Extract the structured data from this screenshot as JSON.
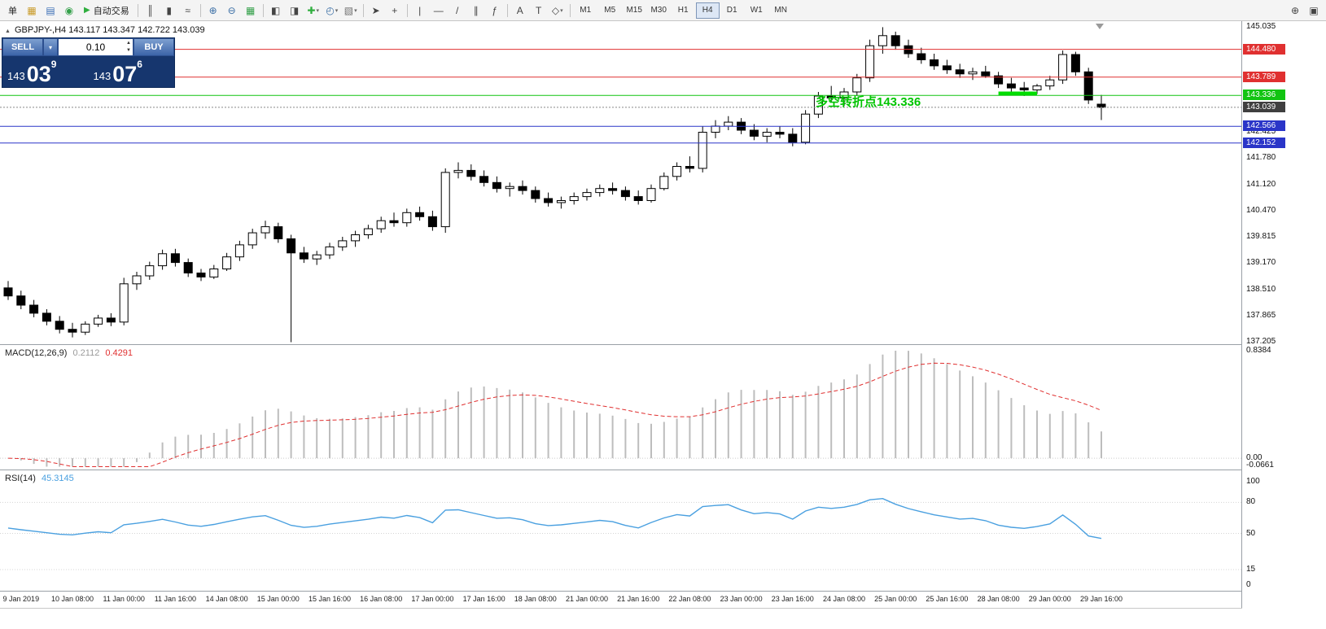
{
  "colors": {
    "red_line": "#e03030",
    "green_line": "#12c412",
    "blue_line": "#2a35c8",
    "price_badge": "#3f3f3f",
    "segment_green": "#00dd00",
    "annotation_green": "#00c400",
    "macd_hist": "#bdbdbd",
    "macd_signal": "#e03030",
    "rsi_line": "#4aa0e0",
    "bull_body": "#ffffff",
    "bear_body": "#000000"
  },
  "toolbar": {
    "dropdown_glyph": "▾",
    "items": [
      {
        "t": "btn",
        "name": "new-order-button",
        "label": "单"
      },
      {
        "t": "icon",
        "name": "market-watch-icon",
        "g": "▦",
        "c": "#c99b2a"
      },
      {
        "t": "icon",
        "name": "data-window-icon",
        "g": "▤",
        "c": "#3c6fb6"
      },
      {
        "t": "icon",
        "name": "navigator-icon",
        "g": "◉",
        "c": "#34a04a"
      },
      {
        "t": "btn",
        "name": "autotrading-button",
        "label": "自动交易",
        "g": "▶",
        "c": "#2fae3e"
      },
      {
        "t": "sep"
      },
      {
        "t": "icon",
        "name": "bar-chart-icon",
        "g": "║"
      },
      {
        "t": "icon",
        "name": "candlestick-chart-icon",
        "g": "▮"
      },
      {
        "t": "icon",
        "name": "line-chart-icon",
        "g": "≈"
      },
      {
        "t": "sep"
      },
      {
        "t": "icon",
        "name": "zoom-in-icon",
        "g": "⊕",
        "c": "#3a6ea5"
      },
      {
        "t": "icon",
        "name": "zoom-out-icon",
        "g": "⊖",
        "c": "#3a6ea5"
      },
      {
        "t": "icon",
        "name": "tile-windows-icon",
        "g": "▦",
        "c": "#34a04a"
      },
      {
        "t": "sep"
      },
      {
        "t": "icon",
        "name": "new-chart-icon",
        "g": "◧"
      },
      {
        "t": "icon",
        "name": "profiles-icon",
        "g": "◨"
      },
      {
        "t": "icon",
        "name": "indicators-dropdown",
        "g": "✚",
        "c": "#2fae3e",
        "dd": true
      },
      {
        "t": "icon",
        "name": "periods-dropdown",
        "g": "◴",
        "c": "#3a6ea5",
        "dd": true
      },
      {
        "t": "icon",
        "name": "templates-dropdown",
        "g": "▧",
        "c": "#707070",
        "dd": true
      },
      {
        "t": "sep"
      },
      {
        "t": "icon",
        "name": "cursor-icon",
        "g": "➤"
      },
      {
        "t": "icon",
        "name": "crosshair-icon",
        "g": "+"
      },
      {
        "t": "sep"
      },
      {
        "t": "icon",
        "name": "vertical-line-icon",
        "g": "|"
      },
      {
        "t": "icon",
        "name": "horizontal-line-icon",
        "g": "—"
      },
      {
        "t": "icon",
        "name": "trendline-icon",
        "g": "/"
      },
      {
        "t": "icon",
        "name": "channel-icon",
        "g": "∥"
      },
      {
        "t": "icon",
        "name": "fibonacci-icon",
        "g": "ƒ"
      },
      {
        "t": "sep"
      },
      {
        "t": "icon",
        "name": "text-icon",
        "g": "A"
      },
      {
        "t": "icon",
        "name": "text-label-icon",
        "g": "T"
      },
      {
        "t": "icon",
        "name": "arrows-icon",
        "g": "◇",
        "dd": true
      },
      {
        "t": "sep"
      },
      {
        "t": "tf",
        "name": "timeframe-m1",
        "label": "M1"
      },
      {
        "t": "tf",
        "name": "timeframe-m5",
        "label": "M5"
      },
      {
        "t": "tf",
        "name": "timeframe-m15",
        "label": "M15"
      },
      {
        "t": "tf",
        "name": "timeframe-m30",
        "label": "M30"
      },
      {
        "t": "tf",
        "name": "timeframe-h1",
        "label": "H1"
      },
      {
        "t": "tf",
        "name": "timeframe-h4",
        "label": "H4",
        "active": true
      },
      {
        "t": "tf",
        "name": "timeframe-d1",
        "label": "D1"
      },
      {
        "t": "tf",
        "name": "timeframe-w1",
        "label": "W1"
      },
      {
        "t": "tf",
        "name": "timeframe-mn",
        "label": "MN"
      },
      {
        "t": "spacer"
      },
      {
        "t": "icon",
        "name": "search-icon",
        "g": "⊕"
      },
      {
        "t": "icon",
        "name": "docking-icon",
        "g": "▣"
      }
    ]
  },
  "chart_header": {
    "marker": "▲",
    "symbol": "GBPJPY-,H4",
    "ohlc": "143.117 143.347 142.722 143.039"
  },
  "trade_panel": {
    "sell_label": "SELL",
    "buy_label": "BUY",
    "dropdown_glyph": "▾",
    "lot_value": "0.10",
    "spin_up": "▲",
    "spin_down": "▼",
    "sell_price": {
      "prefix": "143",
      "big": "03",
      "sup": "9"
    },
    "buy_price": {
      "prefix": "143",
      "big": "07",
      "sup": "6"
    }
  },
  "annotation": {
    "text": "多空转折点143.336"
  },
  "chart_data": {
    "type": "candlestick",
    "symbol": "GBPJPY-",
    "timeframe": "H4",
    "title": "GBPJPY-,H4 143.117 143.347 142.722 143.039",
    "ylim": [
      137.15,
      145.18
    ],
    "y_ticks": [
      "145.035",
      "144.390",
      "143.735",
      "143.080",
      "142.425",
      "141.780",
      "141.120",
      "140.470",
      "139.815",
      "139.170",
      "138.510",
      "137.865",
      "137.205"
    ],
    "x_label_start": 1,
    "x_label_step": 4,
    "x_labels": [
      "9 Jan 2019",
      "10 Jan 08:00",
      "11 Jan 00:00",
      "11 Jan 16:00",
      "14 Jan 08:00",
      "15 Jan 00:00",
      "15 Jan 16:00",
      "16 Jan 08:00",
      "17 Jan 00:00",
      "17 Jan 16:00",
      "18 Jan 08:00",
      "21 Jan 00:00",
      "21 Jan 16:00",
      "22 Jan 08:00",
      "23 Jan 00:00",
      "23 Jan 16:00",
      "24 Jan 08:00",
      "25 Jan 00:00",
      "25 Jan 16:00",
      "28 Jan 08:00",
      "29 Jan 00:00",
      "29 Jan 16:00"
    ],
    "candles": [
      [
        138.55,
        138.72,
        138.25,
        138.35
      ],
      [
        138.35,
        138.48,
        138.02,
        138.12
      ],
      [
        138.12,
        138.25,
        137.82,
        137.92
      ],
      [
        137.92,
        138.02,
        137.62,
        137.72
      ],
      [
        137.72,
        137.85,
        137.42,
        137.52
      ],
      [
        137.52,
        137.68,
        137.32,
        137.45
      ],
      [
        137.45,
        137.72,
        137.38,
        137.65
      ],
      [
        137.65,
        137.88,
        137.58,
        137.8
      ],
      [
        137.8,
        137.92,
        137.6,
        137.7
      ],
      [
        137.7,
        138.8,
        137.62,
        138.65
      ],
      [
        138.65,
        138.95,
        138.5,
        138.85
      ],
      [
        138.85,
        139.2,
        138.75,
        139.1
      ],
      [
        139.1,
        139.5,
        139.0,
        139.4
      ],
      [
        139.4,
        139.52,
        139.08,
        139.18
      ],
      [
        139.18,
        139.28,
        138.82,
        138.92
      ],
      [
        138.92,
        139.02,
        138.72,
        138.82
      ],
      [
        138.82,
        139.12,
        138.77,
        139.02
      ],
      [
        139.02,
        139.42,
        138.97,
        139.32
      ],
      [
        139.32,
        139.72,
        139.22,
        139.62
      ],
      [
        139.62,
        140.02,
        139.52,
        139.92
      ],
      [
        139.92,
        140.22,
        139.77,
        140.07
      ],
      [
        140.07,
        140.17,
        139.67,
        139.77
      ],
      [
        139.77,
        139.87,
        137.2,
        139.42
      ],
      [
        139.42,
        139.57,
        139.17,
        139.27
      ],
      [
        139.27,
        139.47,
        139.12,
        139.37
      ],
      [
        139.37,
        139.67,
        139.27,
        139.57
      ],
      [
        139.57,
        139.82,
        139.47,
        139.72
      ],
      [
        139.72,
        139.97,
        139.57,
        139.87
      ],
      [
        139.87,
        140.12,
        139.77,
        140.02
      ],
      [
        140.02,
        140.32,
        139.92,
        140.22
      ],
      [
        140.22,
        140.42,
        140.07,
        140.17
      ],
      [
        140.17,
        140.52,
        140.07,
        140.42
      ],
      [
        140.42,
        140.57,
        140.22,
        140.32
      ],
      [
        140.32,
        140.47,
        139.97,
        140.07
      ],
      [
        140.07,
        141.52,
        139.92,
        141.42
      ],
      [
        141.42,
        141.67,
        141.27,
        141.47
      ],
      [
        141.47,
        141.62,
        141.22,
        141.32
      ],
      [
        141.32,
        141.47,
        141.07,
        141.17
      ],
      [
        141.17,
        141.32,
        140.92,
        141.02
      ],
      [
        141.02,
        141.17,
        140.82,
        141.07
      ],
      [
        141.07,
        141.22,
        140.87,
        140.97
      ],
      [
        140.97,
        141.07,
        140.67,
        140.77
      ],
      [
        140.77,
        140.92,
        140.57,
        140.67
      ],
      [
        140.67,
        140.82,
        140.52,
        140.72
      ],
      [
        140.72,
        140.92,
        140.62,
        140.82
      ],
      [
        140.82,
        141.02,
        140.72,
        140.92
      ],
      [
        140.92,
        141.12,
        140.82,
        141.02
      ],
      [
        141.02,
        141.17,
        140.87,
        140.97
      ],
      [
        140.97,
        141.07,
        140.72,
        140.82
      ],
      [
        140.82,
        140.97,
        140.62,
        140.72
      ],
      [
        140.72,
        141.12,
        140.67,
        141.02
      ],
      [
        141.02,
        141.42,
        140.97,
        141.32
      ],
      [
        141.32,
        141.67,
        141.22,
        141.57
      ],
      [
        141.57,
        141.82,
        141.42,
        141.52
      ],
      [
        141.52,
        142.57,
        141.42,
        142.42
      ],
      [
        142.42,
        142.72,
        142.27,
        142.57
      ],
      [
        142.57,
        142.82,
        142.47,
        142.67
      ],
      [
        142.67,
        142.77,
        142.37,
        142.47
      ],
      [
        142.47,
        142.62,
        142.22,
        142.32
      ],
      [
        142.32,
        142.52,
        142.17,
        142.42
      ],
      [
        142.42,
        142.57,
        142.27,
        142.37
      ],
      [
        142.37,
        142.52,
        142.07,
        142.17
      ],
      [
        142.17,
        142.97,
        142.12,
        142.87
      ],
      [
        142.87,
        143.42,
        142.77,
        143.32
      ],
      [
        143.32,
        143.57,
        143.17,
        143.27
      ],
      [
        143.27,
        143.52,
        143.07,
        143.42
      ],
      [
        143.42,
        143.87,
        143.32,
        143.77
      ],
      [
        143.77,
        144.72,
        143.67,
        144.57
      ],
      [
        144.57,
        145.03,
        144.37,
        144.82
      ],
      [
        144.82,
        144.92,
        144.47,
        144.57
      ],
      [
        144.57,
        144.72,
        144.27,
        144.37
      ],
      [
        144.37,
        144.52,
        144.12,
        144.22
      ],
      [
        144.22,
        144.37,
        143.97,
        144.07
      ],
      [
        144.07,
        144.22,
        143.87,
        143.97
      ],
      [
        143.97,
        144.12,
        143.77,
        143.87
      ],
      [
        143.87,
        144.02,
        143.72,
        143.92
      ],
      [
        143.92,
        144.07,
        143.77,
        143.82
      ],
      [
        143.82,
        143.92,
        143.52,
        143.62
      ],
      [
        143.62,
        143.77,
        143.42,
        143.52
      ],
      [
        143.52,
        143.67,
        143.32,
        143.47
      ],
      [
        143.47,
        143.62,
        143.37,
        143.57
      ],
      [
        143.57,
        143.82,
        143.47,
        143.72
      ],
      [
        143.72,
        144.45,
        143.62,
        144.35
      ],
      [
        144.35,
        144.42,
        143.82,
        143.92
      ],
      [
        143.92,
        144.02,
        143.12,
        143.22
      ],
      [
        143.117,
        143.347,
        142.722,
        143.039
      ]
    ],
    "hlines": [
      {
        "price": 144.48,
        "label": "144.480",
        "color": "#e03030"
      },
      {
        "price": 143.789,
        "label": "143.789",
        "color": "#e03030"
      },
      {
        "price": 143.336,
        "label": "143.336",
        "color": "#12c412"
      },
      {
        "price": 142.566,
        "label": "142.566",
        "color": "#2a35c8"
      },
      {
        "price": 142.152,
        "label": "142.152",
        "color": "#2a35c8"
      }
    ],
    "current_price": {
      "price": 143.039,
      "label": "143.039"
    },
    "segment": {
      "price": 143.38,
      "from_index": 77,
      "to_index": 80,
      "color": "#00dd00"
    },
    "indicators": [
      {
        "name": "macd",
        "label": "MACD(12,26,9)",
        "value_main": "0.2112",
        "value_signal": "0.4291",
        "params": [
          12,
          26,
          9
        ],
        "scale_max": 0.8384,
        "scale_min": -0.0661,
        "scale_max_label": "0.8384",
        "scale_zero_label": "0.00",
        "scale_min_label": "-0.0661"
      },
      {
        "name": "rsi",
        "label": "RSI(14)",
        "value": "45.3145",
        "params": [
          14
        ],
        "levels": [
          80,
          50,
          15
        ],
        "scale_ticks": [
          {
            "label": "100",
            "value": 100
          },
          {
            "label": "80",
            "value": 80
          },
          {
            "label": "50",
            "value": 50
          },
          {
            "label": "15",
            "value": 15
          },
          {
            "label": "0",
            "value": 0
          }
        ]
      }
    ]
  }
}
